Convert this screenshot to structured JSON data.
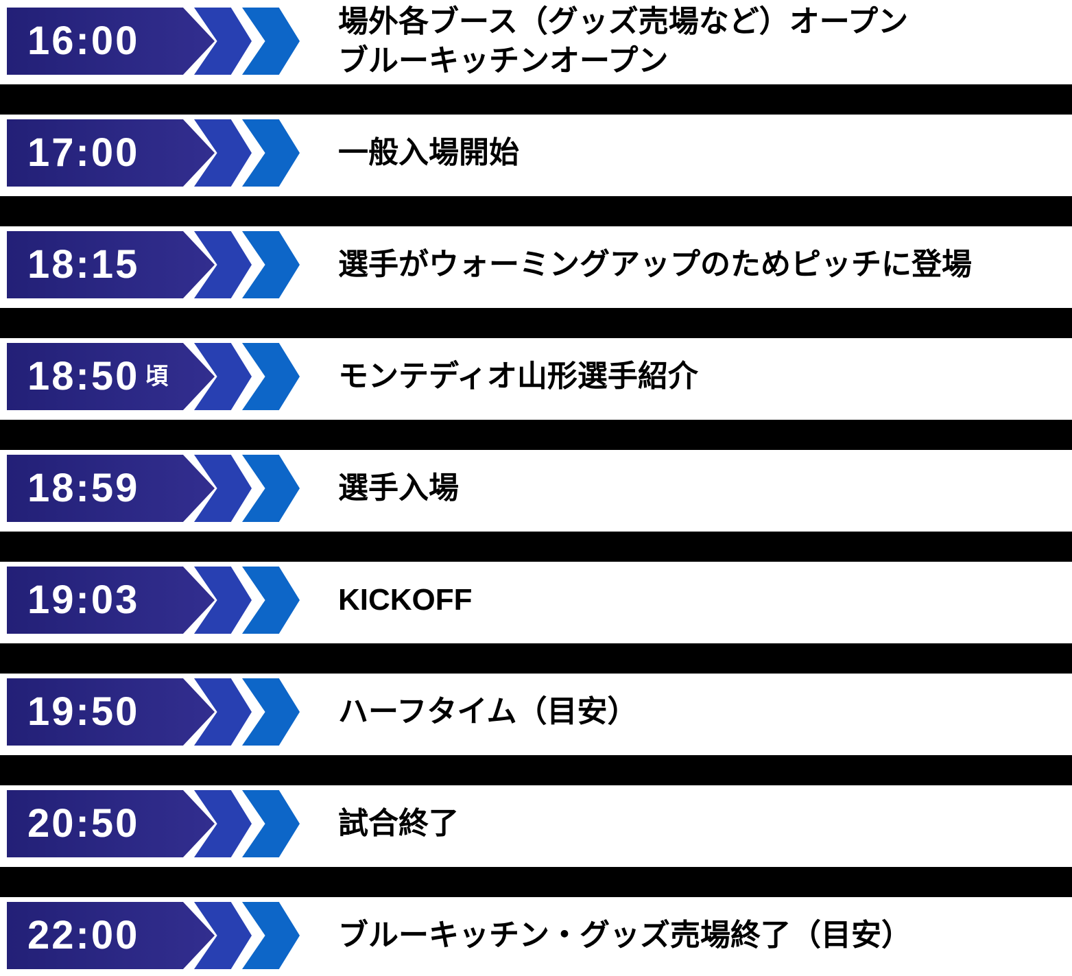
{
  "page": {
    "background": "#ffffff",
    "kind": "match-day-schedule-timeline"
  },
  "colors": {
    "flag_dark": "#232077",
    "flag_light": "#322e8f",
    "chevron_primary": "#2840b2",
    "chevron_secondary": "#0d66c8",
    "time_text": "#ffffff",
    "event_text": "#000000",
    "separator": "#000000"
  },
  "timeline": {
    "rows": [
      {
        "time": "16:00",
        "time_suffix": "",
        "lines": [
          "場外各ブース（グッズ売場など）オープン",
          "ブルーキッチンオープン"
        ]
      },
      {
        "time": "17:00",
        "time_suffix": "",
        "lines": [
          "一般入場開始"
        ]
      },
      {
        "time": "18:15",
        "time_suffix": "",
        "lines": [
          "選手がウォーミングアップのためピッチに登場"
        ]
      },
      {
        "time": "18:50",
        "time_suffix": "頃",
        "lines": [
          "モンテディオ山形選手紹介"
        ]
      },
      {
        "time": "18:59",
        "time_suffix": "",
        "lines": [
          "選手入場"
        ]
      },
      {
        "time": "19:03",
        "time_suffix": "",
        "lines": [
          "KICKOFF"
        ]
      },
      {
        "time": "19:50",
        "time_suffix": "",
        "lines": [
          "ハーフタイム（目安）"
        ]
      },
      {
        "time": "20:50",
        "time_suffix": "",
        "lines": [
          "試合終了"
        ]
      },
      {
        "time": "22:00",
        "time_suffix": "",
        "lines": [
          "ブルーキッチン・グッズ売場終了（目安）"
        ]
      }
    ]
  }
}
